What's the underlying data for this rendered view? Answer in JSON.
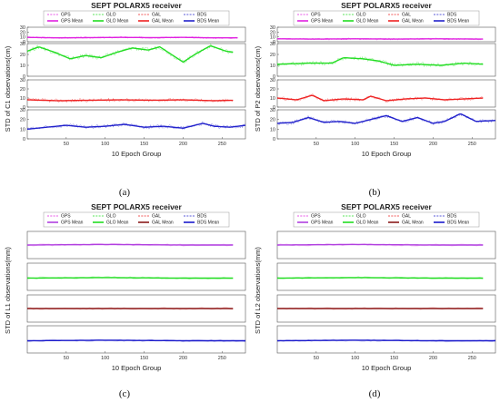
{
  "captions": [
    "(a)",
    "(b)",
    "(c)",
    "(d)"
  ],
  "legend_labels": [
    "GPS",
    "GLO",
    "GAL",
    "BDS",
    "GPS Mean",
    "GLO Mean",
    "GAL Mean",
    "BDS Mean"
  ],
  "colors": {
    "GPS": "#e020e0",
    "GLO": "#22dd22",
    "GAL": "#ee2222",
    "BDS": "#2222cc",
    "GPS_cd": "#b040e0",
    "GAL_cd": "#8b1a1a",
    "BDS_cd": "#1a1acc"
  },
  "chart_data": [
    {
      "type": "line",
      "title": "SEPT POLARX5 receiver",
      "xlabel": "10 Epoch Group",
      "ylabel": "STD of C1 observations(cm)",
      "xlim": [
        0,
        280
      ],
      "xticks": [
        50,
        100,
        150,
        200,
        250
      ],
      "subplots": [
        {
          "ylim": [
            0,
            30
          ],
          "yticks": [
            0,
            10,
            20,
            30
          ],
          "series": [
            {
              "name": "GPS Mean",
              "x": [
                0,
                40,
                80,
                120,
                160,
                200,
                240,
                270
              ],
              "y": [
                9,
                8,
                8.5,
                9,
                8.5,
                9,
                8,
                8
              ]
            }
          ]
        },
        {
          "ylim": [
            0,
            30
          ],
          "yticks": [
            0,
            10,
            20,
            30
          ],
          "series": [
            {
              "name": "GLO Mean",
              "x": [
                0,
                15,
                35,
                55,
                75,
                95,
                115,
                135,
                155,
                170,
                185,
                200,
                215,
                235,
                255,
                265
              ],
              "y": [
                23,
                27,
                22,
                16,
                19,
                17,
                22,
                26,
                24,
                27,
                20,
                13,
                20,
                28,
                23,
                22
              ]
            }
          ]
        },
        {
          "ylim": [
            0,
            30
          ],
          "yticks": [
            0,
            10,
            20,
            30
          ],
          "series": [
            {
              "name": "GAL Mean",
              "x": [
                0,
                40,
                80,
                120,
                160,
                200,
                240,
                265
              ],
              "y": [
                8,
                7,
                7.5,
                8,
                7.5,
                8,
                7,
                7.5
              ]
            }
          ]
        },
        {
          "ylim": [
            0,
            30
          ],
          "yticks": [
            0,
            10,
            20,
            30
          ],
          "series": [
            {
              "name": "BDS Mean",
              "x": [
                0,
                25,
                50,
                75,
                100,
                125,
                150,
                175,
                200,
                225,
                240,
                260,
                280
              ],
              "y": [
                10,
                12,
                14,
                12,
                13,
                15,
                12,
                13,
                11,
                16,
                13,
                12,
                14
              ]
            }
          ]
        }
      ]
    },
    {
      "type": "line",
      "title": "SEPT POLARX5 receiver",
      "xlabel": "10 Epoch Group",
      "ylabel": "STD of P2 observations(cm)",
      "xlim": [
        0,
        280
      ],
      "xticks": [
        50,
        100,
        150,
        200,
        250
      ],
      "subplots": [
        {
          "ylim": [
            0,
            30
          ],
          "yticks": [
            0,
            10,
            20,
            30
          ],
          "series": [
            {
              "name": "GPS Mean",
              "x": [
                0,
                50,
                100,
                150,
                200,
                265
              ],
              "y": [
                6,
                5.5,
                6,
                5.5,
                6,
                5.5
              ]
            }
          ]
        },
        {
          "ylim": [
            0,
            30
          ],
          "yticks": [
            0,
            10,
            20,
            30
          ],
          "series": [
            {
              "name": "GLO Mean",
              "x": [
                0,
                40,
                70,
                85,
                110,
                130,
                150,
                180,
                210,
                240,
                265
              ],
              "y": [
                11,
                12,
                12,
                17,
                16,
                14,
                10,
                11,
                10,
                12,
                11
              ]
            }
          ]
        },
        {
          "ylim": [
            0,
            30
          ],
          "yticks": [
            0,
            10,
            20,
            30
          ],
          "series": [
            {
              "name": "GAL Mean",
              "x": [
                0,
                25,
                45,
                60,
                85,
                110,
                120,
                140,
                165,
                190,
                215,
                240,
                265
              ],
              "y": [
                10,
                8,
                13,
                7,
                9,
                8,
                12,
                7,
                9,
                10,
                8,
                9,
                10
              ]
            }
          ]
        },
        {
          "ylim": [
            0,
            30
          ],
          "yticks": [
            0,
            10,
            20,
            30
          ],
          "series": [
            {
              "name": "BDS Mean",
              "x": [
                0,
                20,
                40,
                60,
                80,
                100,
                120,
                140,
                160,
                180,
                200,
                215,
                235,
                255,
                280
              ],
              "y": [
                16,
                17,
                22,
                17,
                18,
                16,
                20,
                24,
                18,
                22,
                16,
                18,
                26,
                18,
                19
              ]
            }
          ]
        }
      ]
    },
    {
      "type": "line",
      "title": "SEPT POLARX5 receiver",
      "xlabel": "10 Epoch Group",
      "ylabel": "STD of L1 observations(mm)",
      "xlim": [
        0,
        280
      ],
      "xticks": [
        50,
        100,
        150,
        200,
        250
      ],
      "subplots": [
        {
          "ylim": [
            0,
            1
          ],
          "series": [
            {
              "name": "GPS Mean",
              "x": [
                0,
                100,
                200,
                265
              ],
              "y": [
                0.5,
                0.52,
                0.5,
                0.5
              ]
            }
          ]
        },
        {
          "ylim": [
            0,
            1
          ],
          "series": [
            {
              "name": "GLO Mean",
              "x": [
                0,
                100,
                200,
                265
              ],
              "y": [
                0.45,
                0.47,
                0.45,
                0.45
              ]
            }
          ]
        },
        {
          "ylim": [
            0,
            1
          ],
          "series": [
            {
              "name": "GAL Mean",
              "x": [
                0,
                100,
                200,
                265
              ],
              "y": [
                0.5,
                0.5,
                0.5,
                0.5
              ]
            }
          ]
        },
        {
          "ylim": [
            0,
            1
          ],
          "series": [
            {
              "name": "BDS Mean",
              "x": [
                0,
                100,
                200,
                280
              ],
              "y": [
                0.45,
                0.47,
                0.45,
                0.45
              ]
            }
          ]
        }
      ]
    },
    {
      "type": "line",
      "title": "SEPT POLARX5 receiver",
      "xlabel": "10 Epoch Group",
      "ylabel": "STD of L2 observations(mm)",
      "xlim": [
        0,
        280
      ],
      "xticks": [
        50,
        100,
        150,
        200,
        250
      ],
      "subplots": [
        {
          "ylim": [
            0,
            1
          ],
          "series": [
            {
              "name": "GPS Mean",
              "x": [
                0,
                100,
                200,
                265
              ],
              "y": [
                0.5,
                0.52,
                0.5,
                0.5
              ]
            }
          ]
        },
        {
          "ylim": [
            0,
            1
          ],
          "series": [
            {
              "name": "GLO Mean",
              "x": [
                0,
                100,
                200,
                265
              ],
              "y": [
                0.45,
                0.47,
                0.45,
                0.45
              ]
            }
          ]
        },
        {
          "ylim": [
            0,
            1
          ],
          "series": [
            {
              "name": "GAL Mean",
              "x": [
                0,
                100,
                200,
                265
              ],
              "y": [
                0.5,
                0.5,
                0.5,
                0.5
              ]
            }
          ]
        },
        {
          "ylim": [
            0,
            1
          ],
          "series": [
            {
              "name": "BDS Mean",
              "x": [
                0,
                100,
                200,
                280
              ],
              "y": [
                0.45,
                0.47,
                0.45,
                0.45
              ]
            }
          ]
        }
      ]
    }
  ]
}
